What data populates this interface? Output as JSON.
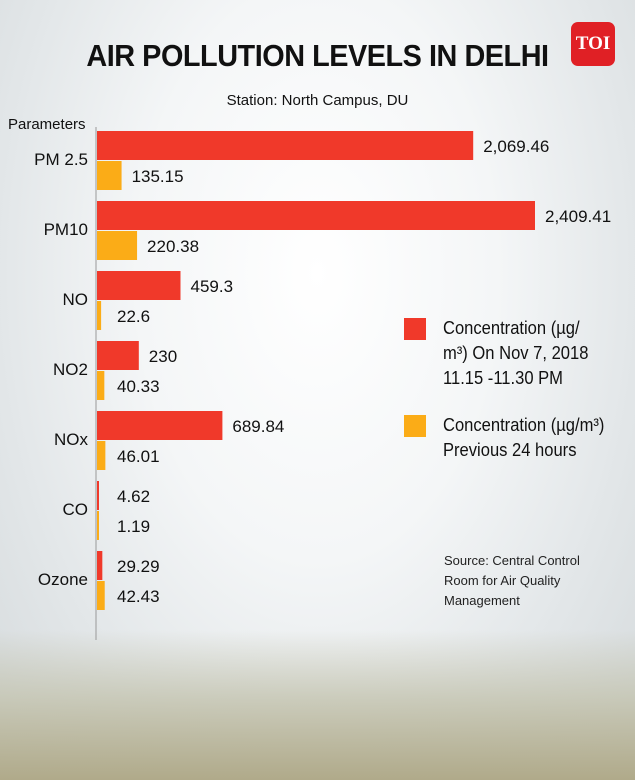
{
  "logo_text": "TOI",
  "title": "AIR POLLUTION LEVELS IN DELHI",
  "subtitle": "Station: North Campus, DU",
  "params_label": "Parameters",
  "colors": {
    "current": "#f0392a",
    "previous": "#fbac17"
  },
  "legend": {
    "current_line1": "Concentration (µg/",
    "current_line2": "m³) On Nov 7, 2018",
    "current_line3": "11.15 -11.30 PM",
    "previous_line1": "Concentration (µg/m³)",
    "previous_line2": "Previous 24 hours"
  },
  "source": {
    "line1": "Source: Central Control",
    "line2": "Room for Air Quality",
    "line3": "Management"
  },
  "chart_data": {
    "type": "bar",
    "orientation": "horizontal",
    "title": "AIR POLLUTION LEVELS IN DELHI",
    "subtitle": "Station: North Campus, DU",
    "categories": [
      "PM 2.5",
      "PM10",
      "NO",
      "NO2",
      "NOx",
      "CO",
      "Ozone"
    ],
    "series": [
      {
        "name": "Concentration (µg/m³) On Nov 7, 2018 11.15 -11.30 PM",
        "values": [
          2069.46,
          2409.41,
          459.3,
          230,
          689.84,
          4.62,
          29.29
        ],
        "labels": [
          "2,069.46",
          "2,409.41",
          "459.3",
          "230",
          "689.84",
          "4.62",
          "29.29"
        ]
      },
      {
        "name": "Concentration (µg/m³) Previous 24 hours",
        "values": [
          135.15,
          220.38,
          22.6,
          40.33,
          46.01,
          1.19,
          42.43
        ],
        "labels": [
          "135.15",
          "220.38",
          "22.6",
          "40.33",
          "46.01",
          "1.19",
          "42.43"
        ]
      }
    ],
    "legend_position": "right",
    "grid": false
  }
}
